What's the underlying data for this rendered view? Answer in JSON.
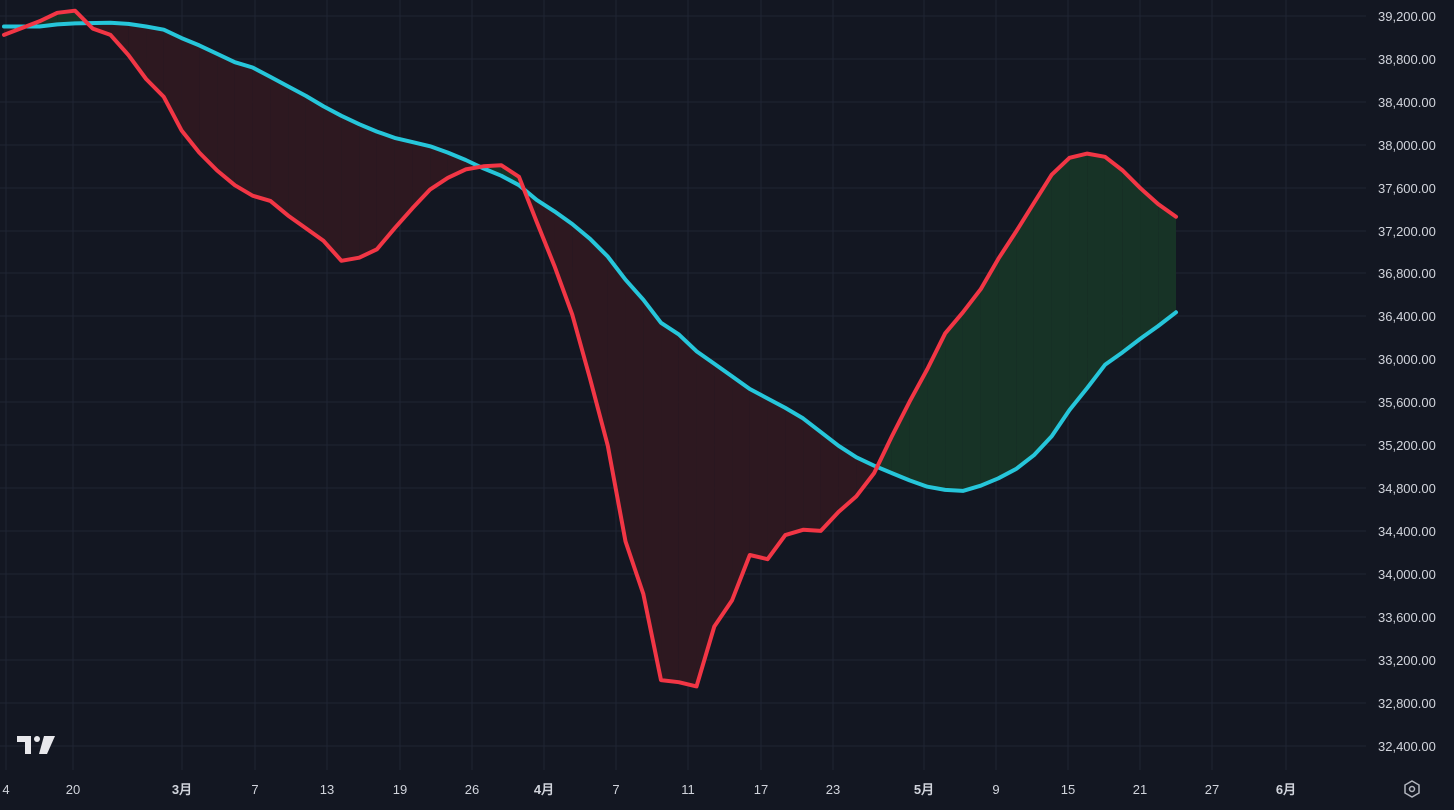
{
  "chart_data": {
    "type": "line",
    "title": "",
    "xlabel": "",
    "ylabel": "",
    "ylim": [
      32200,
      39300
    ],
    "x_ticks": [
      "4",
      "20",
      "3月",
      "7",
      "13",
      "19",
      "26",
      "4月",
      "7",
      "11",
      "17",
      "23",
      "5月",
      "9",
      "15",
      "21",
      "27",
      "6月"
    ],
    "y_ticks": [
      "39,200.00",
      "38,800.00",
      "38,400.00",
      "38,000.00",
      "37,600.00",
      "37,200.00",
      "36,800.00",
      "36,400.00",
      "36,000.00",
      "35,600.00",
      "35,200.00",
      "34,800.00",
      "34,400.00",
      "34,000.00",
      "33,600.00",
      "33,200.00",
      "32,800.00",
      "32,400.00"
    ],
    "fill_positive_color": "#173326",
    "fill_negative_color": "#2d1820",
    "series": [
      {
        "color": "#f23645",
        "points": [
          [
            0,
            39020
          ],
          [
            2,
            39150
          ],
          [
            3,
            39230
          ],
          [
            4,
            39250
          ],
          [
            5,
            39080
          ],
          [
            6,
            39020
          ],
          [
            7,
            38830
          ],
          [
            8,
            38600
          ],
          [
            9,
            38430
          ],
          [
            10,
            38110
          ],
          [
            11,
            37900
          ],
          [
            12,
            37730
          ],
          [
            13,
            37590
          ],
          [
            14,
            37490
          ],
          [
            15,
            37440
          ],
          [
            16,
            37300
          ],
          [
            17,
            37180
          ],
          [
            18,
            37060
          ],
          [
            19,
            36870
          ],
          [
            20,
            36900
          ],
          [
            21,
            36980
          ],
          [
            22,
            37180
          ],
          [
            23,
            37370
          ],
          [
            24,
            37550
          ],
          [
            25,
            37660
          ],
          [
            26,
            37740
          ],
          [
            27,
            37770
          ],
          [
            28,
            37780
          ],
          [
            29,
            37670
          ],
          [
            30,
            37240
          ],
          [
            31,
            36820
          ],
          [
            32,
            36360
          ],
          [
            33,
            35750
          ],
          [
            34,
            35110
          ],
          [
            35,
            34200
          ],
          [
            36,
            33700
          ],
          [
            37,
            32880
          ],
          [
            38,
            32860
          ],
          [
            39,
            32820
          ],
          [
            40,
            33390
          ],
          [
            41,
            33640
          ],
          [
            42,
            34070
          ],
          [
            43,
            34030
          ],
          [
            44,
            34260
          ],
          [
            45,
            34310
          ],
          [
            46,
            34300
          ],
          [
            47,
            34480
          ],
          [
            48,
            34630
          ],
          [
            49,
            34850
          ],
          [
            50,
            35200
          ],
          [
            51,
            35530
          ],
          [
            52,
            35840
          ],
          [
            53,
            36180
          ],
          [
            54,
            36380
          ],
          [
            55,
            36600
          ],
          [
            56,
            36890
          ],
          [
            57,
            37150
          ],
          [
            58,
            37420
          ],
          [
            59,
            37690
          ],
          [
            60,
            37850
          ],
          [
            61,
            37890
          ],
          [
            62,
            37860
          ],
          [
            63,
            37730
          ],
          [
            64,
            37560
          ],
          [
            65,
            37410
          ],
          [
            66,
            37290
          ]
        ]
      },
      {
        "color": "#26c6da",
        "points": [
          [
            0,
            39100
          ],
          [
            2,
            39100
          ],
          [
            3,
            39120
          ],
          [
            4,
            39130
          ],
          [
            6,
            39135
          ],
          [
            7,
            39125
          ],
          [
            8,
            39100
          ],
          [
            9,
            39070
          ],
          [
            10,
            38990
          ],
          [
            11,
            38920
          ],
          [
            12,
            38840
          ],
          [
            13,
            38760
          ],
          [
            14,
            38710
          ],
          [
            15,
            38620
          ],
          [
            16,
            38530
          ],
          [
            17,
            38440
          ],
          [
            18,
            38340
          ],
          [
            19,
            38250
          ],
          [
            20,
            38170
          ],
          [
            21,
            38100
          ],
          [
            22,
            38040
          ],
          [
            23,
            38000
          ],
          [
            24,
            37960
          ],
          [
            25,
            37900
          ],
          [
            26,
            37830
          ],
          [
            27,
            37750
          ],
          [
            28,
            37680
          ],
          [
            29,
            37590
          ],
          [
            30,
            37450
          ],
          [
            31,
            37340
          ],
          [
            32,
            37220
          ],
          [
            33,
            37080
          ],
          [
            34,
            36910
          ],
          [
            35,
            36690
          ],
          [
            36,
            36500
          ],
          [
            37,
            36280
          ],
          [
            38,
            36170
          ],
          [
            39,
            36010
          ],
          [
            40,
            35890
          ],
          [
            41,
            35770
          ],
          [
            42,
            35650
          ],
          [
            43,
            35560
          ],
          [
            44,
            35470
          ],
          [
            45,
            35370
          ],
          [
            46,
            35240
          ],
          [
            47,
            35110
          ],
          [
            48,
            35000
          ],
          [
            49,
            34920
          ],
          [
            50,
            34850
          ],
          [
            51,
            34780
          ],
          [
            52,
            34720
          ],
          [
            53,
            34690
          ],
          [
            54,
            34680
          ],
          [
            55,
            34730
          ],
          [
            56,
            34800
          ],
          [
            57,
            34890
          ],
          [
            58,
            35020
          ],
          [
            59,
            35200
          ],
          [
            60,
            35450
          ],
          [
            61,
            35660
          ],
          [
            62,
            35880
          ],
          [
            63,
            36000
          ],
          [
            64,
            36130
          ],
          [
            65,
            36250
          ],
          [
            66,
            36380
          ]
        ]
      }
    ]
  },
  "icons": {
    "logo": "tradingview-logo",
    "settings": "settings-hexagon-icon"
  }
}
